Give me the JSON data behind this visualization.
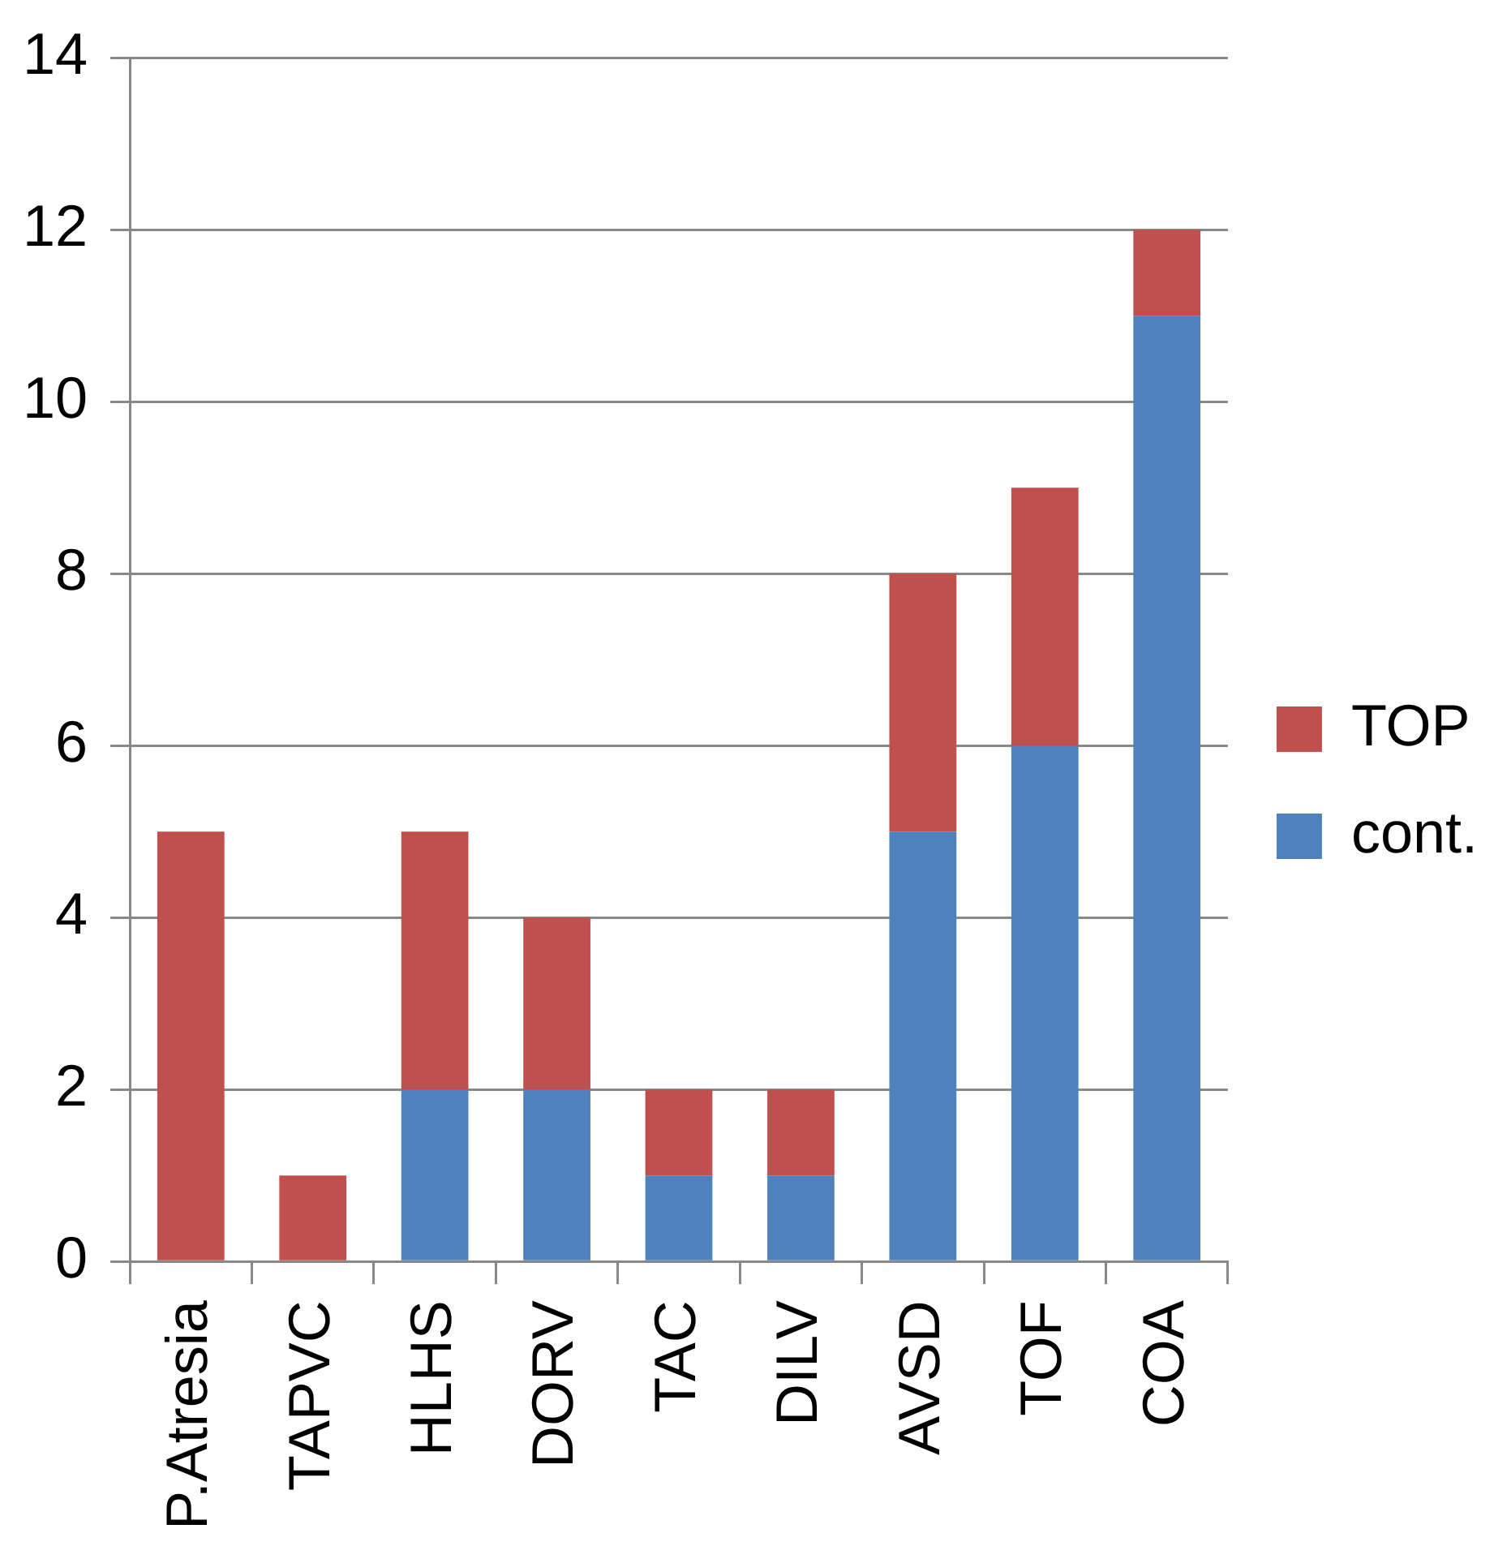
{
  "chart_data": {
    "type": "bar",
    "stacked": true,
    "categories": [
      "P.Atresia",
      "TAPVC",
      "HLHS",
      "DORV",
      "TAC",
      "DILV",
      "AVSD",
      "TOF",
      "COA"
    ],
    "series": [
      {
        "name": "cont.",
        "color": "#4f81bd",
        "values": [
          0,
          0,
          2,
          2,
          1,
          1,
          5,
          6,
          11
        ]
      },
      {
        "name": "TOP",
        "color": "#c0504d",
        "values": [
          5,
          1,
          3,
          2,
          1,
          1,
          3,
          3,
          1
        ]
      }
    ],
    "ylim": [
      0,
      14
    ],
    "yticks": [
      0,
      2,
      4,
      6,
      8,
      10,
      12,
      14
    ],
    "grid": "y",
    "legend": "right"
  }
}
